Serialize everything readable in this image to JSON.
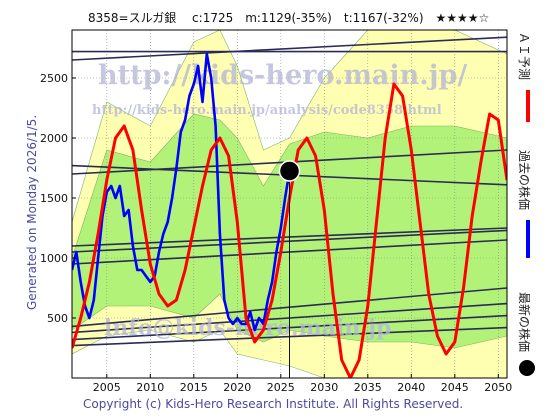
{
  "header": {
    "title": "8358=スルガ銀　 c:1725　m:1129(-35%)　t:1167(-32%)　★★★★☆"
  },
  "side_text": {
    "generated": "Generated on Monday 2026/1/5.",
    "legend": [
      {
        "label": "ＡＩ予測",
        "color": "#ff0000"
      },
      {
        "label": "過去の株価",
        "color": "#0000ff"
      },
      {
        "label": "最新の株価",
        "color": "#000000"
      }
    ]
  },
  "footer": {
    "copyright": "Copyright (c) Kids-Hero Research Institute. All Rights Reserved."
  },
  "watermarks": {
    "url_main": "http://kids-hero.main.jp/",
    "url_sub": "http://kids-hero.main.jp/analysis/code8358.html",
    "mail": "info@kids-hero.main.jp"
  },
  "chart_data": {
    "type": "line",
    "xlim": [
      2001,
      2051
    ],
    "ylim": [
      0,
      2900
    ],
    "x_ticks": [
      2005,
      2010,
      2015,
      2020,
      2025,
      2030,
      2035,
      2040,
      2045,
      2050
    ],
    "y_ticks": [
      500,
      1000,
      1500,
      2000,
      2500
    ],
    "grid": true,
    "latest_point": {
      "x": 2026.0,
      "y": 1725
    },
    "current_marker_x": 2026.0,
    "series": [
      {
        "name": "過去の株価",
        "color": "#0000ff",
        "x": [
          2001.0,
          2001.5,
          2002.0,
          2002.5,
          2003.0,
          2003.5,
          2004.0,
          2004.5,
          2005.0,
          2005.5,
          2006.0,
          2006.5,
          2007.0,
          2007.5,
          2008.0,
          2008.5,
          2009.0,
          2009.5,
          2010.0,
          2010.5,
          2011.0,
          2011.5,
          2012.0,
          2012.5,
          2013.0,
          2013.5,
          2014.0,
          2014.5,
          2015.0,
          2015.5,
          2016.0,
          2016.5,
          2017.0,
          2017.5,
          2018.0,
          2018.5,
          2019.0,
          2019.5,
          2020.0,
          2020.5,
          2021.0,
          2021.5,
          2022.0,
          2022.5,
          2023.0,
          2023.5,
          2024.0,
          2024.5,
          2025.0,
          2025.5,
          2026.0
        ],
        "y": [
          900,
          1050,
          800,
          600,
          500,
          650,
          1000,
          1350,
          1550,
          1600,
          1500,
          1600,
          1350,
          1400,
          1100,
          900,
          900,
          850,
          800,
          850,
          1050,
          1200,
          1300,
          1500,
          1750,
          2050,
          2150,
          2350,
          2450,
          2600,
          2300,
          2700,
          2500,
          2100,
          1200,
          650,
          500,
          450,
          500,
          450,
          450,
          550,
          400,
          500,
          450,
          650,
          800,
          1050,
          1250,
          1500,
          1725
        ]
      },
      {
        "name": "ＡＩ予測",
        "color": "#ff0000",
        "x": [
          2001.0,
          2002.0,
          2003.0,
          2004.0,
          2005.0,
          2006.0,
          2007.0,
          2008.0,
          2009.0,
          2010.0,
          2011.0,
          2012.0,
          2013.0,
          2014.0,
          2015.0,
          2016.0,
          2017.0,
          2018.0,
          2019.0,
          2020.0,
          2021.0,
          2022.0,
          2023.0,
          2024.0,
          2025.0,
          2026.0,
          2027.0,
          2028.0,
          2029.0,
          2030.0,
          2031.0,
          2032.0,
          2033.0,
          2034.0,
          2035.0,
          2036.0,
          2037.0,
          2038.0,
          2039.0,
          2040.0,
          2041.0,
          2042.0,
          2043.0,
          2044.0,
          2045.0,
          2046.0,
          2047.0,
          2048.0,
          2049.0,
          2050.0,
          2051.0
        ],
        "y": [
          250,
          500,
          800,
          1200,
          1650,
          2000,
          2100,
          1900,
          1400,
          950,
          700,
          600,
          650,
          900,
          1250,
          1600,
          1900,
          2000,
          1850,
          1300,
          500,
          300,
          400,
          650,
          1050,
          1500,
          1900,
          2000,
          1850,
          1400,
          700,
          150,
          0,
          150,
          600,
          1300,
          2000,
          2450,
          2350,
          1900,
          1300,
          700,
          350,
          200,
          300,
          750,
          1350,
          1800,
          2200,
          2150,
          1650
        ]
      }
    ],
    "bands": [
      {
        "name": "outer",
        "color": "#ffff99",
        "x": [
          2001,
          2005,
          2010,
          2015,
          2018,
          2020,
          2023,
          2026,
          2030,
          2035,
          2040,
          2045,
          2051
        ],
        "lower": [
          200,
          350,
          400,
          300,
          400,
          200,
          150,
          100,
          0,
          0,
          0,
          0,
          0
        ],
        "upper": [
          1300,
          2300,
          2100,
          2800,
          2900,
          2600,
          1900,
          2000,
          2500,
          2900,
          2900,
          2900,
          2700
        ]
      },
      {
        "name": "inner",
        "color": "#99ee66",
        "x": [
          2001,
          2005,
          2010,
          2015,
          2018,
          2020,
          2023,
          2026,
          2030,
          2035,
          2040,
          2045,
          2051
        ],
        "lower": [
          400,
          600,
          600,
          500,
          700,
          400,
          300,
          400,
          350,
          300,
          300,
          250,
          350
        ],
        "upper": [
          1000,
          1900,
          1800,
          2200,
          2150,
          2000,
          1600,
          1950,
          2050,
          2000,
          2100,
          2100,
          2000
        ]
      }
    ],
    "trend_lines": [
      {
        "x": [
          2001,
          2051
        ],
        "y": [
          2720,
          2720
        ]
      },
      {
        "x": [
          2001,
          2051
        ],
        "y": [
          2650,
          2840
        ]
      },
      {
        "x": [
          2001,
          2051
        ],
        "y": [
          1700,
          1900
        ]
      },
      {
        "x": [
          2001,
          2051
        ],
        "y": [
          1770,
          1610
        ]
      },
      {
        "x": [
          2001,
          2051
        ],
        "y": [
          1100,
          1250
        ]
      },
      {
        "x": [
          2001,
          2051
        ],
        "y": [
          1050,
          1230
        ]
      },
      {
        "x": [
          2001,
          2051
        ],
        "y": [
          950,
          1150
        ]
      },
      {
        "x": [
          2001,
          2051
        ],
        "y": [
          430,
          750
        ]
      },
      {
        "x": [
          2001,
          2051
        ],
        "y": [
          380,
          620
        ]
      },
      {
        "x": [
          2001,
          2051
        ],
        "y": [
          320,
          520
        ]
      },
      {
        "x": [
          2001,
          2051
        ],
        "y": [
          270,
          420
        ]
      }
    ]
  }
}
